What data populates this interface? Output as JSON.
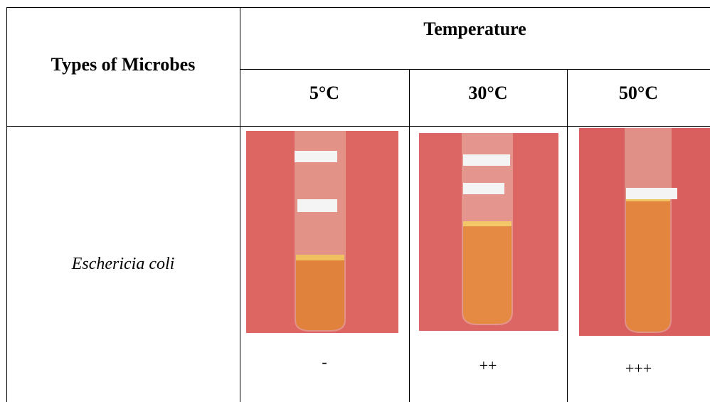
{
  "header": {
    "title": "Types of Microbes",
    "group": "Temperature",
    "columns": [
      "5°C",
      "30°C",
      "50°C"
    ]
  },
  "rows": [
    {
      "name": "Eschericia coli",
      "results": [
        "-",
        "++",
        "+++"
      ]
    }
  ]
}
